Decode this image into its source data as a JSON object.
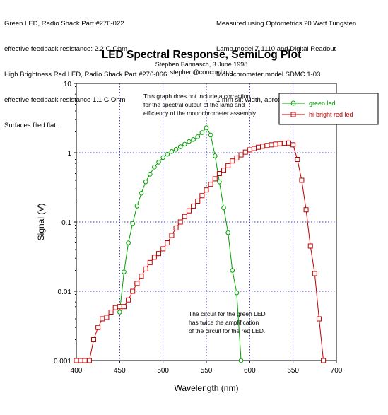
{
  "header_notes": {
    "left": [
      "Green LED, Radio Shack Part #276-022",
      "effective feedback resistance: 2.2 G Ohm",
      "High Brightness Red LED, Radio Shack Part #276-066",
      "effective feedback resistance 1.1 G Ohm",
      "Surfaces filed flat."
    ],
    "right": [
      "Measured using Optometrics 20 Watt Tungsten",
      "Lamp model 7-1110 and Digital Readout",
      "Monochrometer model SDMC 1-03.",
      "1 mm slit width, aprox 7 nm bandpass."
    ]
  },
  "chart_data": {
    "type": "line",
    "title": "LED Spectral Response, SemiLog Plot",
    "subtitle": [
      "Stephen Bannasch, 3 June 1998",
      "stephen@concord.org"
    ],
    "xlabel": "Wavelength (nm)",
    "ylabel": "Signal (V)",
    "xlim": [
      400,
      700
    ],
    "ylim": [
      0.001,
      10
    ],
    "yscale": "log",
    "x_ticks": [
      400,
      450,
      500,
      550,
      600,
      650,
      700
    ],
    "y_ticks": [
      {
        "value": 0.001,
        "label": "0.001"
      },
      {
        "value": 0.01,
        "label": "0.01"
      },
      {
        "value": 0.1,
        "label": "0.1"
      },
      {
        "value": 1,
        "label": "1"
      },
      {
        "value": 10,
        "label": "10"
      }
    ],
    "grid": true,
    "legend_position": "top-right",
    "annotations": [
      [
        "This graph does not include a correction",
        "for the spectral output of the lamp and",
        "efficiency of the monochrometer assembly."
      ],
      [
        "The circuit for the green LED",
        "has twice the amplification",
        "of the circuit for the red LED."
      ]
    ],
    "series": [
      {
        "name": "green led",
        "color": "#00a000",
        "marker": "circle",
        "x": [
          450,
          455,
          460,
          465,
          470,
          475,
          480,
          485,
          490,
          495,
          500,
          505,
          510,
          515,
          520,
          525,
          530,
          535,
          540,
          545,
          550,
          555,
          560,
          565,
          570,
          575,
          580,
          585,
          590
        ],
        "y": [
          0.005,
          0.019,
          0.05,
          0.095,
          0.17,
          0.26,
          0.38,
          0.49,
          0.62,
          0.73,
          0.85,
          0.95,
          1.04,
          1.12,
          1.22,
          1.33,
          1.45,
          1.55,
          1.7,
          1.95,
          2.3,
          1.8,
          0.9,
          0.38,
          0.16,
          0.07,
          0.02,
          0.0095,
          0.001
        ]
      },
      {
        "name": "hi-bright red led",
        "color": "#c00000",
        "marker": "square",
        "x": [
          400,
          405,
          410,
          415,
          420,
          425,
          430,
          435,
          440,
          445,
          450,
          455,
          460,
          465,
          470,
          475,
          480,
          485,
          490,
          495,
          500,
          505,
          510,
          515,
          520,
          525,
          530,
          535,
          540,
          545,
          550,
          555,
          560,
          565,
          570,
          575,
          580,
          585,
          590,
          595,
          600,
          605,
          610,
          615,
          620,
          625,
          630,
          635,
          640,
          645,
          650,
          655,
          660,
          665,
          670,
          675,
          680,
          685
        ],
        "y": [
          0.001,
          0.001,
          0.001,
          0.001,
          0.002,
          0.003,
          0.004,
          0.0042,
          0.005,
          0.0058,
          0.006,
          0.006,
          0.0075,
          0.01,
          0.013,
          0.0165,
          0.021,
          0.026,
          0.031,
          0.035,
          0.041,
          0.05,
          0.064,
          0.082,
          0.1,
          0.12,
          0.145,
          0.17,
          0.2,
          0.24,
          0.29,
          0.35,
          0.42,
          0.5,
          0.56,
          0.65,
          0.76,
          0.84,
          0.93,
          1.02,
          1.1,
          1.15,
          1.2,
          1.24,
          1.27,
          1.3,
          1.33,
          1.35,
          1.37,
          1.38,
          1.3,
          0.8,
          0.4,
          0.15,
          0.045,
          0.018,
          0.004,
          0.001
        ]
      }
    ]
  }
}
